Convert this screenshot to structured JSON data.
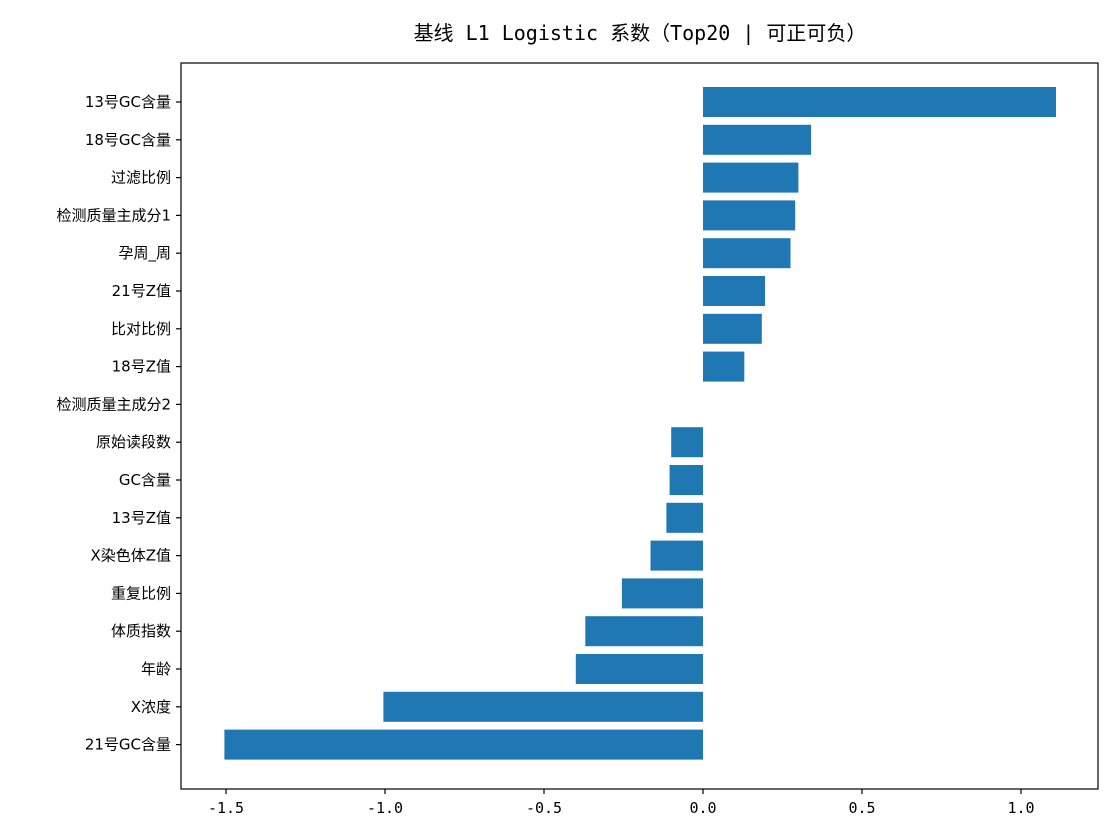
{
  "chart_data": {
    "type": "bar",
    "orientation": "horizontal",
    "title": "基线 L1 Logistic 系数（Top20 | 可正可负）",
    "xlabel": "",
    "ylabel": "",
    "xlim": [
      -1.6,
      1.2
    ],
    "x_ticks": [
      -1.5,
      -1.0,
      -0.5,
      0.0,
      0.5,
      1.0
    ],
    "x_tick_labels": [
      "-1.5",
      "-1.0",
      "-0.5",
      "0.0",
      "0.5",
      "1.0"
    ],
    "categories": [
      "13号GC含量",
      "18号GC含量",
      "过滤比例",
      "检测质量主成分1",
      "孕周_周",
      "21号Z值",
      "比对比例",
      "18号Z值",
      "检测质量主成分2",
      "原始读段数",
      "GC含量",
      "13号Z值",
      "X染色体Z值",
      "重复比例",
      "体质指数",
      "年龄",
      "X浓度",
      "21号GC含量"
    ],
    "values": [
      1.11,
      0.34,
      0.3,
      0.29,
      0.275,
      0.195,
      0.185,
      0.13,
      0.0,
      -0.1,
      -0.105,
      -0.115,
      -0.165,
      -0.255,
      -0.37,
      -0.4,
      -1.005,
      -1.505
    ],
    "grid": false,
    "legend": "none",
    "bar_color": "#1f77b4"
  }
}
